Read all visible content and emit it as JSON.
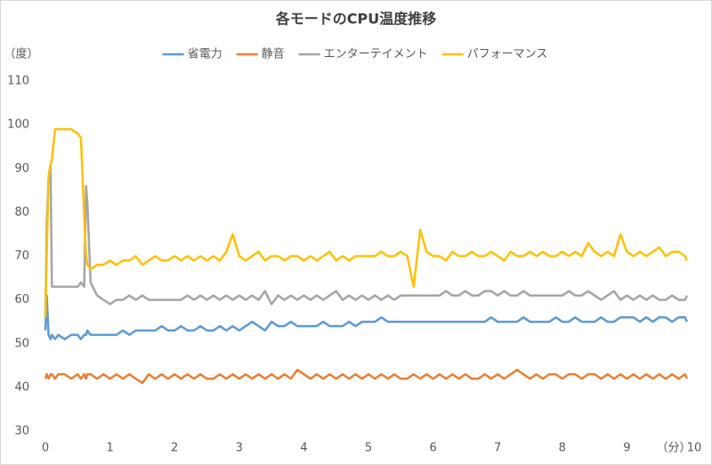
{
  "chart_data": {
    "type": "line",
    "title": "各モードのCPU温度推移",
    "y_label": "（度）",
    "x_label": "（分）",
    "x": [
      0,
      0.02,
      0.05,
      0.08,
      0.1,
      0.15,
      0.2,
      0.3,
      0.4,
      0.5,
      0.55,
      0.6,
      0.63,
      0.65,
      0.7,
      0.8,
      0.9,
      1,
      1.1,
      1.2,
      1.3,
      1.4,
      1.5,
      1.6,
      1.7,
      1.8,
      1.9,
      2,
      2.1,
      2.2,
      2.3,
      2.4,
      2.5,
      2.6,
      2.7,
      2.8,
      2.9,
      3,
      3.1,
      3.2,
      3.3,
      3.4,
      3.5,
      3.6,
      3.7,
      3.8,
      3.9,
      4,
      4.1,
      4.2,
      4.3,
      4.4,
      4.5,
      4.6,
      4.7,
      4.8,
      4.9,
      5,
      5.1,
      5.2,
      5.3,
      5.4,
      5.5,
      5.6,
      5.7,
      5.8,
      5.9,
      6,
      6.1,
      6.2,
      6.3,
      6.4,
      6.5,
      6.6,
      6.7,
      6.8,
      6.9,
      7,
      7.1,
      7.2,
      7.3,
      7.4,
      7.5,
      7.6,
      7.7,
      7.8,
      7.9,
      8,
      8.1,
      8.2,
      8.3,
      8.4,
      8.5,
      8.6,
      8.7,
      8.8,
      8.9,
      9,
      9.1,
      9.2,
      9.3,
      9.4,
      9.5,
      9.6,
      9.7,
      9.8,
      9.9,
      9.93
    ],
    "series": [
      {
        "name": "省電力",
        "color": "#5b9bd5",
        "values": [
          53,
          61,
          52,
          51,
          52,
          51,
          52,
          51,
          52,
          52,
          51,
          52,
          52,
          53,
          52,
          52,
          52,
          52,
          52,
          53,
          52,
          53,
          53,
          53,
          53,
          54,
          53,
          53,
          54,
          53,
          53,
          54,
          53,
          53,
          54,
          53,
          54,
          53,
          54,
          55,
          54,
          53,
          55,
          54,
          54,
          55,
          54,
          54,
          54,
          54,
          55,
          54,
          54,
          54,
          55,
          54,
          55,
          55,
          55,
          56,
          55,
          55,
          55,
          55,
          55,
          55,
          55,
          55,
          55,
          55,
          55,
          55,
          55,
          55,
          55,
          55,
          56,
          55,
          55,
          55,
          55,
          56,
          55,
          55,
          55,
          55,
          56,
          55,
          55,
          56,
          55,
          55,
          55,
          56,
          55,
          55,
          56,
          56,
          56,
          55,
          56,
          55,
          56,
          56,
          55,
          56,
          56,
          55
        ]
      },
      {
        "name": "静音",
        "color": "#ed7d31",
        "values": [
          42,
          43,
          42,
          43,
          43,
          42,
          43,
          43,
          42,
          43,
          42,
          43,
          42,
          43,
          43,
          42,
          43,
          42,
          43,
          42,
          43,
          42,
          41,
          43,
          42,
          43,
          42,
          43,
          42,
          43,
          42,
          43,
          42,
          42,
          43,
          42,
          43,
          42,
          43,
          42,
          43,
          42,
          43,
          42,
          43,
          42,
          44,
          43,
          42,
          43,
          42,
          43,
          42,
          43,
          42,
          43,
          42,
          43,
          42,
          43,
          42,
          43,
          42,
          42,
          43,
          42,
          43,
          42,
          43,
          42,
          43,
          42,
          43,
          42,
          42,
          43,
          42,
          43,
          42,
          43,
          44,
          43,
          42,
          43,
          42,
          43,
          43,
          42,
          43,
          43,
          42,
          43,
          43,
          42,
          43,
          42,
          43,
          42,
          43,
          42,
          43,
          42,
          43,
          42,
          43,
          42,
          43,
          42
        ]
      },
      {
        "name": "エンターテイメント",
        "color": "#a5a5a5",
        "values": [
          56,
          77,
          88,
          91,
          63,
          63,
          63,
          63,
          63,
          63,
          64,
          63,
          86,
          82,
          64,
          61,
          60,
          59,
          60,
          60,
          61,
          60,
          61,
          60,
          60,
          60,
          60,
          60,
          60,
          61,
          60,
          61,
          60,
          61,
          60,
          61,
          60,
          61,
          60,
          61,
          60,
          62,
          59,
          61,
          60,
          61,
          60,
          61,
          60,
          61,
          60,
          61,
          62,
          60,
          61,
          60,
          61,
          60,
          61,
          60,
          61,
          60,
          61,
          61,
          61,
          61,
          61,
          61,
          61,
          62,
          61,
          61,
          62,
          61,
          61,
          62,
          62,
          61,
          62,
          61,
          61,
          62,
          61,
          61,
          61,
          61,
          61,
          61,
          62,
          61,
          61,
          62,
          61,
          60,
          61,
          62,
          60,
          61,
          60,
          61,
          60,
          61,
          60,
          60,
          61,
          60,
          60,
          61
        ]
      },
      {
        "name": "パフォーマンス",
        "color": "#ffc000",
        "values": [
          56,
          70,
          88,
          91,
          92,
          99,
          99,
          99,
          99,
          98,
          97,
          79,
          70,
          68,
          67,
          68,
          68,
          69,
          68,
          69,
          69,
          70,
          68,
          69,
          70,
          69,
          69,
          70,
          69,
          70,
          69,
          70,
          69,
          70,
          69,
          71,
          75,
          70,
          69,
          70,
          71,
          69,
          70,
          70,
          69,
          70,
          70,
          69,
          70,
          69,
          70,
          71,
          69,
          70,
          69,
          70,
          70,
          70,
          70,
          71,
          70,
          70,
          71,
          70,
          63,
          76,
          71,
          70,
          70,
          69,
          71,
          70,
          70,
          71,
          70,
          70,
          71,
          70,
          69,
          71,
          70,
          70,
          71,
          70,
          71,
          70,
          70,
          71,
          70,
          71,
          70,
          73,
          71,
          70,
          71,
          70,
          75,
          71,
          70,
          71,
          70,
          71,
          72,
          70,
          71,
          71,
          70,
          69
        ]
      }
    ],
    "xlim": [
      0,
      10
    ],
    "xticks": [
      0,
      1,
      2,
      3,
      4,
      5,
      6,
      7,
      8,
      9,
      10
    ],
    "ylim": [
      30,
      110
    ],
    "yticks": [
      30,
      40,
      50,
      60,
      70,
      80,
      90,
      100,
      110
    ],
    "grid": false,
    "legend": "top"
  }
}
